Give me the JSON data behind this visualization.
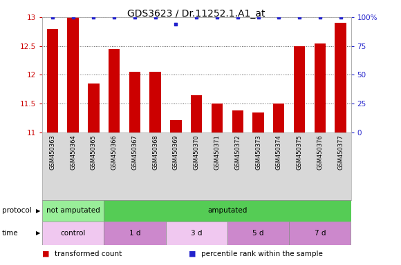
{
  "title": "GDS3623 / Dr.11252.1.A1_at",
  "samples": [
    "GSM450363",
    "GSM450364",
    "GSM450365",
    "GSM450366",
    "GSM450367",
    "GSM450368",
    "GSM450369",
    "GSM450370",
    "GSM450371",
    "GSM450372",
    "GSM450373",
    "GSM450374",
    "GSM450375",
    "GSM450376",
    "GSM450377"
  ],
  "bar_values": [
    12.8,
    13.0,
    11.85,
    12.45,
    12.05,
    12.05,
    11.22,
    11.65,
    11.5,
    11.38,
    11.35,
    11.5,
    12.5,
    12.55,
    12.9
  ],
  "dot_values": [
    100,
    100,
    100,
    100,
    100,
    100,
    94,
    100,
    100,
    100,
    100,
    100,
    100,
    100,
    100
  ],
  "ylim_left": [
    11,
    13
  ],
  "ylim_right": [
    0,
    100
  ],
  "yticks_left": [
    11,
    11.5,
    12,
    12.5,
    13
  ],
  "yticks_right": [
    0,
    25,
    50,
    75,
    100
  ],
  "bar_color": "#cc0000",
  "dot_color": "#2222cc",
  "bar_width": 0.55,
  "protocol_segments": [
    {
      "label": "not amputated",
      "start": 0,
      "end": 3,
      "color": "#99ee99"
    },
    {
      "label": "amputated",
      "start": 3,
      "end": 15,
      "color": "#55cc55"
    }
  ],
  "time_segments": [
    {
      "label": "control",
      "start": 0,
      "end": 3,
      "color": "#f0c8f0"
    },
    {
      "label": "1 d",
      "start": 3,
      "end": 6,
      "color": "#cc88cc"
    },
    {
      "label": "3 d",
      "start": 6,
      "end": 9,
      "color": "#f0c8f0"
    },
    {
      "label": "5 d",
      "start": 9,
      "end": 12,
      "color": "#cc88cc"
    },
    {
      "label": "7 d",
      "start": 12,
      "end": 15,
      "color": "#cc88cc"
    }
  ],
  "tick_area_color": "#d8d8d8",
  "bg_color": "#ffffff",
  "legend_items": [
    {
      "label": "transformed count",
      "color": "#cc0000"
    },
    {
      "label": "percentile rank within the sample",
      "color": "#2222cc"
    }
  ]
}
